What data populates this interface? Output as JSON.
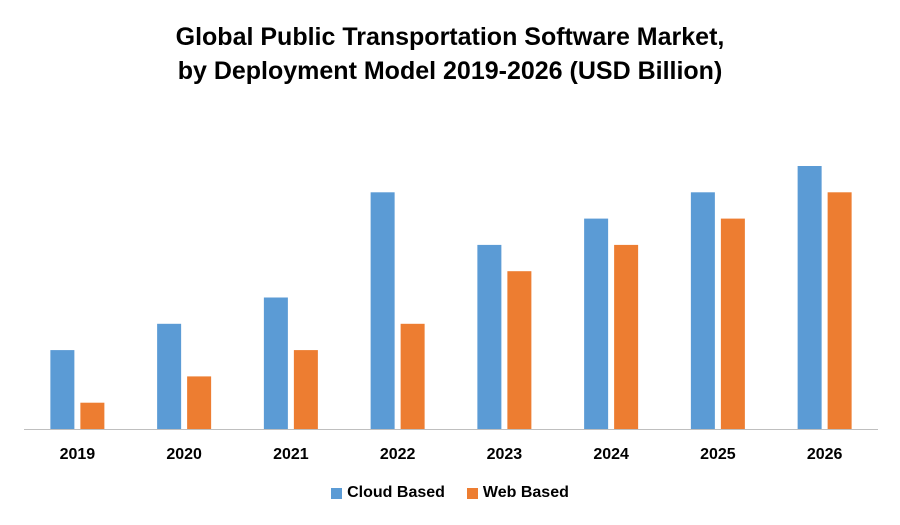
{
  "chart_data": {
    "type": "bar",
    "title_lines": [
      "Global Public Transportation Software Market,",
      "by Deployment Model 2019-2026 (USD Billion)"
    ],
    "categories": [
      "2019",
      "2020",
      "2021",
      "2022",
      "2023",
      "2024",
      "2025",
      "2026"
    ],
    "series": [
      {
        "name": "Cloud Based",
        "color": "#5B9BD5",
        "values": [
          3,
          4,
          5,
          9,
          7,
          8,
          9,
          10
        ]
      },
      {
        "name": "Web Based",
        "color": "#ED7D31",
        "values": [
          1,
          2,
          3,
          4,
          6,
          7,
          8,
          9
        ]
      }
    ],
    "xlabel": "",
    "ylabel": "",
    "ylim": [
      0,
      12
    ],
    "grid": false,
    "legend": "bottom"
  }
}
